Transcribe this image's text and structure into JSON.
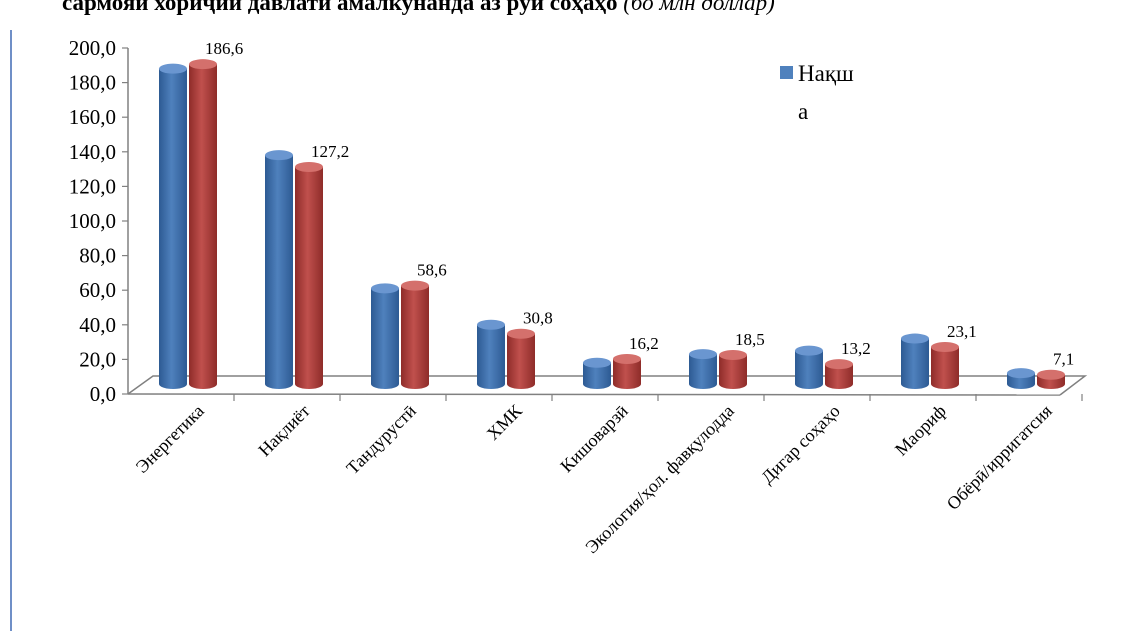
{
  "title": {
    "main": "сармояи хориҷии давлатӣ амалкунанда аз рӯи соҳаҳо",
    "unit": "(бо млн доллар)"
  },
  "legend": {
    "label": "Нақша"
  },
  "colors": {
    "blue": "#4f81bd",
    "blue_dark": "#2d5a93",
    "red": "#c0504d",
    "red_dark": "#8e2c29",
    "axis": "#808080"
  },
  "chart_data": {
    "type": "bar",
    "categories": [
      "Энергетика",
      "Нақлиёт",
      "Тандурустӣ",
      "ХМК",
      "Кишоварзӣ",
      "Экология/ҳол. фавқулодда",
      "Дигар соҳаҳо",
      "Маориф",
      "Обёрӣ/ирригатсия"
    ],
    "series": [
      {
        "name": "Нақша",
        "values": [
          184.0,
          134.0,
          57.0,
          36.0,
          14.0,
          19.0,
          21.0,
          28.0,
          8.0
        ]
      },
      {
        "values": [
          186.6,
          127.2,
          58.6,
          30.8,
          16.2,
          18.5,
          13.2,
          23.1,
          7.1
        ],
        "labels": [
          "186,6",
          "127,2",
          "58,6",
          "30,8",
          "16,2",
          "18,5",
          "13,2",
          "23,1",
          "7,1"
        ]
      }
    ],
    "ylim": [
      0,
      200
    ],
    "yticks": [
      "0,0",
      "20,0",
      "40,0",
      "60,0",
      "80,0",
      "100,0",
      "120,0",
      "140,0",
      "160,0",
      "180,0",
      "200,0"
    ],
    "legend_position": "top-right",
    "grid": false
  }
}
